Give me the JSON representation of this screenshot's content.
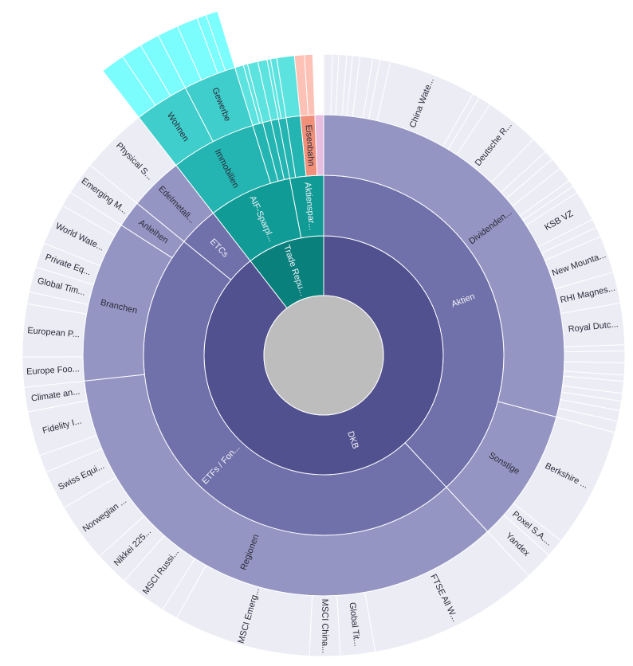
{
  "chart_data": {
    "type": "sunburst",
    "title": "",
    "center_color": "#bdbdbd",
    "palettes": {
      "purple": [
        "#51518f",
        "#7070aa",
        "#9595c3",
        "#ececf5"
      ],
      "teal": [
        "#0a807c",
        "#119b96",
        "#24b4b1",
        "#3fcecb",
        "#7cfdfd"
      ]
    },
    "root": [
      {
        "label": "DKB",
        "palette": "purple",
        "children": [
          {
            "label": "Aktien",
            "children": [
              {
                "label": "Dividenden...",
                "children": [
                  {
                    "label": "",
                    "value": 0.47
                  },
                  {
                    "label": "",
                    "value": 0.33
                  },
                  {
                    "label": "",
                    "value": 0.42
                  },
                  {
                    "label": "",
                    "value": 0.31
                  },
                  {
                    "label": "",
                    "value": 0.39
                  },
                  {
                    "label": "",
                    "value": 0.69
                  },
                  {
                    "label": "",
                    "value": 0.39
                  },
                  {
                    "label": "",
                    "value": 0.56
                  },
                  {
                    "label": "China Wate...",
                    "value": 4.69
                  },
                  {
                    "label": "",
                    "value": 0.39
                  },
                  {
                    "label": "",
                    "value": 0.67
                  },
                  {
                    "label": "Deutsche R...",
                    "value": 2.94
                  },
                  {
                    "label": "",
                    "value": 0.92
                  },
                  {
                    "label": "",
                    "value": 0.53
                  },
                  {
                    "label": "",
                    "value": 0.64
                  },
                  {
                    "label": "",
                    "value": 0.81
                  },
                  {
                    "label": "",
                    "value": 0.36
                  },
                  {
                    "label": "",
                    "value": 0.39
                  },
                  {
                    "label": "KSB VZ",
                    "value": 1.64
                  },
                  {
                    "label": "",
                    "value": 0.47
                  },
                  {
                    "label": "",
                    "value": 0.53
                  },
                  {
                    "label": "New Mounta...",
                    "value": 2.0
                  },
                  {
                    "label": "RHI Magnes...",
                    "value": 1.67
                  },
                  {
                    "label": "Royal Dutc...",
                    "value": 2.22
                  },
                  {
                    "label": "",
                    "value": 0.33
                  },
                  {
                    "label": "",
                    "value": 0.64
                  },
                  {
                    "label": "",
                    "value": 0.64
                  },
                  {
                    "label": "",
                    "value": 0.33
                  },
                  {
                    "label": "",
                    "value": 0.64
                  },
                  {
                    "label": "",
                    "value": 0.42
                  },
                  {
                    "label": "",
                    "value": 0.5
                  },
                  {
                    "label": "",
                    "value": 0.58
                  },
                  {
                    "label": "",
                    "value": 0.61
                  }
                ]
              },
              {
                "label": "Sonstige",
                "children": [
                  {
                    "label": "Berkshire ...",
                    "value": 6.42
                  },
                  {
                    "label": "Poxel S.A....",
                    "value": 1.0
                  },
                  {
                    "label": "Yandex",
                    "value": 1.53
                  }
                ]
              }
            ]
          },
          {
            "label": "ETFs / Fon...",
            "children": [
              {
                "label": "Regionen",
                "children": [
                  {
                    "label": "FTSE All W...",
                    "value": 9.17
                  },
                  {
                    "label": "Global Tit...",
                    "value": 1.86
                  },
                  {
                    "label": "MSCI China...",
                    "value": 1.64
                  },
                  {
                    "label": "MSCI Emerg...",
                    "value": 7.36
                  },
                  {
                    "label": "",
                    "value": 0.86
                  },
                  {
                    "label": "MSCI Russi...",
                    "value": 2.53
                  },
                  {
                    "label": "Nikkei 225...",
                    "value": 1.86
                  },
                  {
                    "label": "Norwegian ...",
                    "value": 3.17
                  },
                  {
                    "label": "Swiss Equi...",
                    "value": 2.11
                  },
                  {
                    "label": "",
                    "value": 0.94
                  },
                  {
                    "label": "Fidelity I...",
                    "value": 2.39
                  },
                  {
                    "label": "Climate an...",
                    "value": 1.31
                  }
                ]
              },
              {
                "label": "Branchen",
                "children": [
                  {
                    "label": "Europe Foo...",
                    "value": 1.61
                  },
                  {
                    "label": "European P...",
                    "value": 2.83
                  },
                  {
                    "label": "",
                    "value": 0.64
                  },
                  {
                    "label": "Global Tim...",
                    "value": 1.36
                  },
                  {
                    "label": "Private Eq...",
                    "value": 1.33
                  },
                  {
                    "label": "World Wate...",
                    "value": 2.22
                  },
                  {
                    "label": "",
                    "value": 0.81
                  }
                ]
              },
              {
                "label": "Anleihen",
                "children": [
                  {
                    "label": "Emerging M...",
                    "value": 1.78
                  }
                ]
              }
            ]
          },
          {
            "label": "ETCs",
            "children": [
              {
                "label": "Edelmetall...",
                "children": [
                  {
                    "label": "Physical S...",
                    "value": 3.61
                  }
                ]
              }
            ]
          }
        ]
      },
      {
        "label": "Trade Repu...",
        "palette": "teal",
        "children": [
          {
            "label": "AIF-Sparpl...",
            "children": [
              {
                "label": "Immobilien",
                "children": [
                  {
                    "label": "Wohnen",
                    "children": [
                      {
                        "label": "",
                        "value": 1.08
                      },
                      {
                        "label": "",
                        "value": 0.94
                      },
                      {
                        "label": "",
                        "value": 0.89
                      }
                    ]
                  },
                  {
                    "label": "Gewerbe",
                    "children": [
                      {
                        "label": "",
                        "value": 0.94
                      },
                      {
                        "label": "",
                        "value": 0.94
                      },
                      {
                        "label": "",
                        "value": 0.42
                      },
                      {
                        "label": "",
                        "value": 0.53
                      }
                    ]
                  }
                ]
              },
              {
                "label": "",
                "children": [
                  {
                    "label": "",
                    "value": 0.47,
                    "color": "#5de3df"
                  },
                  {
                    "label": "",
                    "value": 0.22,
                    "color": "#5de3df"
                  }
                ]
              },
              {
                "label": "",
                "children": [
                  {
                    "label": "",
                    "value": 0.56,
                    "color": "#5de3df"
                  }
                ]
              },
              {
                "label": "",
                "children": [
                  {
                    "label": "",
                    "value": 0.5,
                    "color": "#5de3df"
                  }
                ]
              }
            ]
          },
          {
            "label": "Aktienspar...",
            "children": [
              {
                "label": "",
                "children": [
                  {
                    "label": "",
                    "value": 0.19,
                    "color": "#5de3df"
                  },
                  {
                    "label": "",
                    "value": 0.33,
                    "color": "#5de3df"
                  }
                ]
              },
              {
                "label": "",
                "children": [
                  {
                    "label": "",
                    "value": 0.94,
                    "color": "#5de3df"
                  }
                ]
              },
              {
                "label": "Eisenbahn",
                "color": "#f0907a",
                "children": [
                  {
                    "label": "",
                    "value": 0.53,
                    "color": "#fdc1b5"
                  },
                  {
                    "label": "",
                    "value": 0.44,
                    "color": "#fdc1b5"
                  }
                ]
              },
              {
                "label": "",
                "value": 0.58,
                "color": "#e8bee0"
              }
            ]
          }
        ]
      }
    ]
  }
}
